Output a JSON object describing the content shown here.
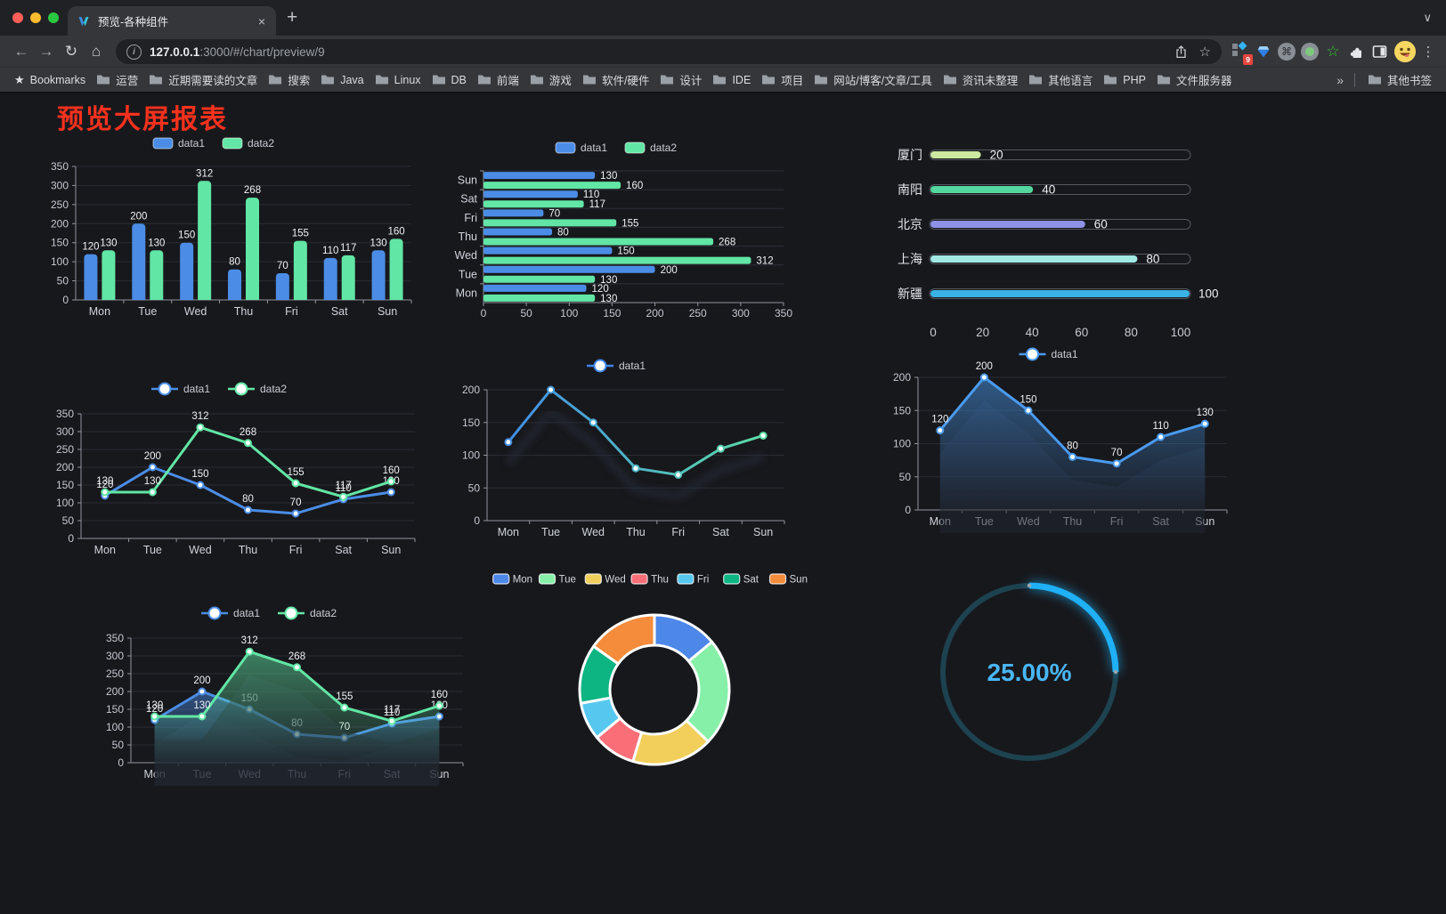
{
  "browser": {
    "tab": {
      "title": "预览-各种组件"
    },
    "nav": {
      "url_host": "127.0.0.1",
      "url_rest": ":3000/#/chart/preview/9"
    },
    "glyphs": {
      "back": "←",
      "forward": "→",
      "reload": "↻",
      "home": "⌂",
      "info": "i",
      "star": "☆",
      "menu": "⋮",
      "chevron": "∨",
      "new_tab": "+",
      "close": "×",
      "bm_star": "★"
    },
    "extensions_badge": "9",
    "bookmarks_bar": {
      "star_label": "Bookmarks",
      "folders": [
        "运营",
        "近期需要读的文章",
        "搜索",
        "Java",
        "Linux",
        "DB",
        "前端",
        "游戏",
        "软件/硬件",
        "设计",
        "IDE",
        "项目",
        "网站/博客/文章/工具",
        "资讯未整理",
        "其他语言",
        "PHP",
        "文件服务器"
      ],
      "overflow": "»",
      "other": "其他书签"
    }
  },
  "page": {
    "title": "预览大屏报表",
    "title_color": "#f5311d",
    "background": "#17181c"
  },
  "chart_data": [
    {
      "id": "bar",
      "type": "bar",
      "categories": [
        "Mon",
        "Tue",
        "Wed",
        "Thu",
        "Fri",
        "Sat",
        "Sun"
      ],
      "series": [
        {
          "name": "data1",
          "color": "#4b8de6",
          "values": [
            120,
            200,
            150,
            80,
            70,
            110,
            130
          ]
        },
        {
          "name": "data2",
          "color": "#62e6a5",
          "values": [
            130,
            130,
            312,
            268,
            155,
            117,
            160
          ]
        }
      ],
      "ylim": [
        0,
        350
      ],
      "ystep": 50,
      "show_labels": true,
      "legend_position": "top",
      "grid": true
    },
    {
      "id": "hbar",
      "type": "bar-horizontal",
      "categories_top_to_bottom": [
        "Sun",
        "Sat",
        "Fri",
        "Thu",
        "Wed",
        "Tue",
        "Mon"
      ],
      "series": [
        {
          "name": "data1",
          "color": "#4b8de6",
          "values_top_to_bottom": [
            130,
            110,
            70,
            80,
            150,
            200,
            120
          ]
        },
        {
          "name": "data2",
          "color": "#62e6a5",
          "values_top_to_bottom": [
            160,
            117,
            155,
            268,
            312,
            130,
            130
          ]
        }
      ],
      "xlim": [
        0,
        350
      ],
      "xstep": 50,
      "show_labels": true,
      "legend_position": "top"
    },
    {
      "id": "capsule",
      "type": "capsule-bar",
      "rows": [
        {
          "label": "厦门",
          "value": 20,
          "color": "#cbe7a0"
        },
        {
          "label": "南阳",
          "value": 40,
          "color": "#55d69e"
        },
        {
          "label": "北京",
          "value": 60,
          "color": "#8e92e6"
        },
        {
          "label": "上海",
          "value": 80,
          "color": "#a2e9e4"
        },
        {
          "label": "新疆",
          "value": 100,
          "color": "#3ab2e6"
        }
      ],
      "xlim": [
        0,
        100
      ],
      "xticks": [
        0,
        20,
        40,
        60,
        80,
        100
      ]
    },
    {
      "id": "line2",
      "type": "line",
      "categories": [
        "Mon",
        "Tue",
        "Wed",
        "Thu",
        "Fri",
        "Sat",
        "Sun"
      ],
      "series": [
        {
          "name": "data1",
          "color": "#4b8de6",
          "values": [
            120,
            200,
            150,
            80,
            70,
            110,
            130
          ]
        },
        {
          "name": "data2",
          "color": "#62e6a5",
          "values": [
            130,
            130,
            312,
            268,
            155,
            117,
            160
          ]
        }
      ],
      "ylim": [
        0,
        350
      ],
      "ystep": 50,
      "show_labels": true,
      "legend_position": "top"
    },
    {
      "id": "lineGrad",
      "type": "line",
      "categories": [
        "Mon",
        "Tue",
        "Wed",
        "Thu",
        "Fri",
        "Sat",
        "Sun"
      ],
      "series": [
        {
          "name": "data1",
          "color": "#4b8de6",
          "gradient": [
            "#3f86e8",
            "#5fe3a2"
          ],
          "values": [
            120,
            200,
            150,
            80,
            70,
            110,
            130
          ]
        }
      ],
      "ylim": [
        0,
        200
      ],
      "ystep": 50,
      "show_labels": false,
      "shadow": true,
      "legend_position": "top"
    },
    {
      "id": "area1",
      "type": "area",
      "categories": [
        "Mon",
        "Tue",
        "Wed",
        "Thu",
        "Fri",
        "Sat",
        "Sun"
      ],
      "series": [
        {
          "name": "data1",
          "color": "#4a9bf0",
          "values": [
            120,
            200,
            150,
            80,
            70,
            110,
            130
          ]
        }
      ],
      "ylim": [
        0,
        200
      ],
      "ystep": 50,
      "show_labels": true,
      "legend_position": "top"
    },
    {
      "id": "area2",
      "type": "area",
      "categories": [
        "Mon",
        "Tue",
        "Wed",
        "Thu",
        "Fri",
        "Sat",
        "Sun"
      ],
      "series": [
        {
          "name": "data1",
          "color": "#4b8de6",
          "values": [
            120,
            200,
            150,
            80,
            70,
            110,
            130
          ]
        },
        {
          "name": "data2",
          "color": "#62e6a5",
          "values": [
            130,
            130,
            312,
            268,
            155,
            117,
            160
          ]
        }
      ],
      "ylim": [
        0,
        350
      ],
      "ystep": 50,
      "show_labels": true,
      "legend_position": "top"
    },
    {
      "id": "pie",
      "type": "pie",
      "slices": [
        {
          "label": "Mon",
          "value": 120,
          "color": "#4d87e8"
        },
        {
          "label": "Tue",
          "value": 200,
          "color": "#86f0a8"
        },
        {
          "label": "Wed",
          "value": 150,
          "color": "#f2cf5b"
        },
        {
          "label": "Thu",
          "value": 80,
          "color": "#fa6e78"
        },
        {
          "label": "Fri",
          "value": 70,
          "color": "#56c8f0"
        },
        {
          "label": "Sat",
          "value": 110,
          "color": "#0db583"
        },
        {
          "label": "Sun",
          "value": 130,
          "color": "#f58c3c"
        }
      ],
      "donut": true,
      "legend_position": "top"
    },
    {
      "id": "gauge",
      "type": "gauge",
      "value": 25,
      "label": "25.00%",
      "color": "#1fb0f5",
      "track_color": "#1d4250",
      "text_color": "#49b6f5"
    }
  ]
}
